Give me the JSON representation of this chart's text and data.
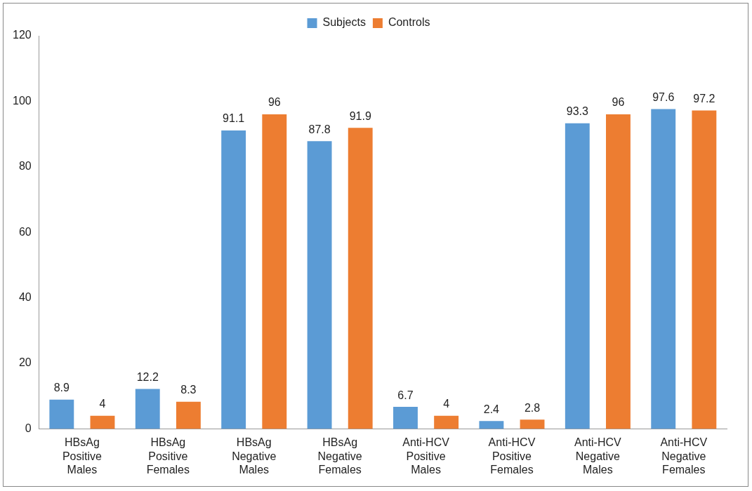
{
  "chart_data": {
    "type": "bar",
    "categories": [
      "HBsAg Positive Males",
      "HBsAg Positive Females",
      "HBsAg Negative Males",
      "HBsAg Negative Females",
      "Anti-HCV Positive Males",
      "Anti-HCV Positive Females",
      "Anti-HCV Negative Males",
      "Anti-HCV Negative Females"
    ],
    "series": [
      {
        "name": "Subjects",
        "color": "#5b9bd5",
        "values": [
          8.9,
          12.2,
          91.1,
          87.8,
          6.7,
          2.4,
          93.3,
          97.6
        ]
      },
      {
        "name": "Controls",
        "color": "#ed7d31",
        "values": [
          4,
          8.3,
          96,
          91.9,
          4,
          2.8,
          96,
          97.2
        ]
      }
    ],
    "ylim": [
      0,
      120
    ],
    "yticks": [
      0,
      20,
      40,
      60,
      80,
      100,
      120
    ],
    "grid": false,
    "legend": "top",
    "data_labels": true
  }
}
